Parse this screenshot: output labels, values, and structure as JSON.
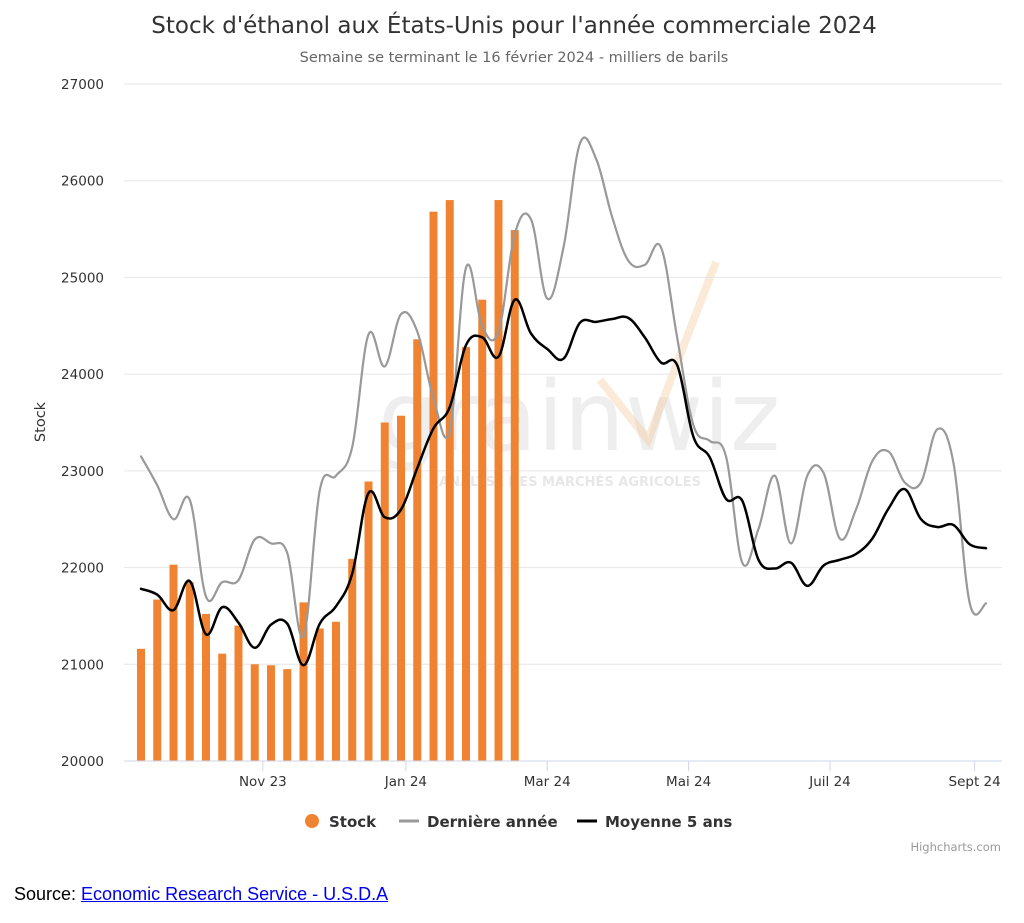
{
  "source": {
    "prefix": "Source: ",
    "link_text": "Economic Research Service - U.S.D.A"
  },
  "credits": "Highcharts.com",
  "watermark": {
    "brand": "grainwiz",
    "tagline": "ANALYSE DES MARCHÉS AGRICOLES"
  },
  "chart_data": {
    "type": "bar+line",
    "title": "Stock d'éthanol aux États-Unis pour l'année commerciale 2024",
    "subtitle": "Semaine se terminant le 16 février 2024 - milliers de barils",
    "ylabel": "Stock",
    "xlabel": "",
    "ylim": [
      20000,
      27000
    ],
    "yticks": [
      20000,
      21000,
      22000,
      23000,
      24000,
      25000,
      26000,
      27000
    ],
    "grid": true,
    "legend_position": "bottom-center",
    "x_domain_weeks": [
      0,
      52
    ],
    "xticks": [
      {
        "label": "Nov 23",
        "week": 7.5
      },
      {
        "label": "Jan 24",
        "week": 16.3
      },
      {
        "label": "Mar 24",
        "week": 25
      },
      {
        "label": "Mai 24",
        "week": 33.7
      },
      {
        "label": "Juil 24",
        "week": 42.4
      },
      {
        "label": "Sept 24",
        "week": 51.3
      }
    ],
    "series": [
      {
        "name": "Stock",
        "type": "bar",
        "color": "#f08331",
        "x": [
          0,
          1,
          2,
          3,
          4,
          5,
          6,
          7,
          8,
          9,
          10,
          11,
          12,
          13,
          14,
          15,
          16,
          17,
          18,
          19,
          20,
          21,
          22,
          23
        ],
        "values": [
          21160,
          21670,
          22030,
          21850,
          21520,
          21110,
          21400,
          21000,
          20990,
          20950,
          21640,
          21370,
          21440,
          22090,
          22890,
          23500,
          23570,
          24360,
          25680,
          25800,
          24280,
          24770,
          25800,
          25490
        ]
      },
      {
        "name": "Dernière année",
        "type": "line",
        "color": "#999999",
        "x": [
          0,
          1,
          2,
          3,
          4,
          5,
          6,
          7,
          8,
          9,
          10,
          11,
          12,
          13,
          14,
          15,
          16,
          17,
          18,
          19,
          20,
          21,
          22,
          23,
          24,
          25,
          26,
          27,
          28,
          29,
          30,
          31,
          32,
          33,
          34,
          35,
          36,
          37,
          38,
          39,
          40,
          41,
          42,
          43,
          44,
          45,
          46,
          47,
          48,
          49,
          50,
          51,
          52
        ],
        "values": [
          23150,
          22850,
          22500,
          22700,
          21700,
          21850,
          21870,
          22290,
          22250,
          22150,
          21290,
          22800,
          22950,
          23250,
          24410,
          24080,
          24620,
          24440,
          23750,
          23420,
          25100,
          24490,
          24440,
          25450,
          25600,
          24780,
          25310,
          26380,
          26230,
          25620,
          25170,
          25130,
          25310,
          24370,
          23470,
          23310,
          23150,
          22050,
          22400,
          22950,
          22250,
          22950,
          22980,
          22300,
          22600,
          23100,
          23200,
          22880,
          22880,
          23430,
          23080,
          21630,
          21630
        ]
      },
      {
        "name": "Moyenne 5 ans",
        "type": "line",
        "color": "#000000",
        "x": [
          0,
          1,
          2,
          3,
          4,
          5,
          6,
          7,
          8,
          9,
          10,
          11,
          12,
          13,
          14,
          15,
          16,
          17,
          18,
          19,
          20,
          21,
          22,
          23,
          24,
          25,
          26,
          27,
          28,
          29,
          30,
          31,
          32,
          33,
          34,
          35,
          36,
          37,
          38,
          39,
          40,
          41,
          42,
          43,
          44,
          45,
          46,
          47,
          48,
          49,
          50,
          51,
          52
        ],
        "values": [
          21780,
          21720,
          21560,
          21860,
          21310,
          21590,
          21430,
          21170,
          21410,
          21420,
          20990,
          21420,
          21600,
          21940,
          22770,
          22520,
          22600,
          23030,
          23440,
          23660,
          24300,
          24380,
          24180,
          24770,
          24420,
          24260,
          24160,
          24530,
          24540,
          24570,
          24580,
          24380,
          24120,
          24090,
          23350,
          23140,
          22710,
          22690,
          22080,
          21990,
          22050,
          21810,
          22020,
          22080,
          22140,
          22300,
          22610,
          22810,
          22500,
          22420,
          22440,
          22240,
          22200
        ]
      }
    ]
  }
}
